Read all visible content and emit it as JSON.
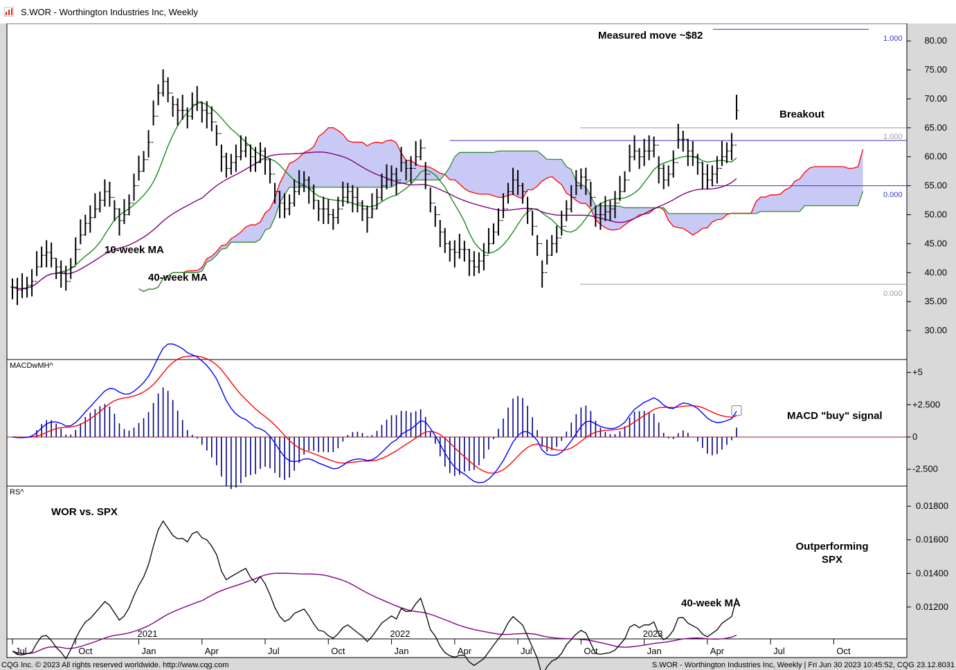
{
  "window": {
    "title": "S.WOR - Worthington Industries Inc, Weekly"
  },
  "footer": {
    "left": "CQG Inc. © 2023 All rights reserved worldwide. http://www.cqg.com",
    "right": "S.WOR - Worthington Industries Inc, Weekly | Fri Jun 30 2023 10:45:52, CQG 23.12.8031"
  },
  "chart_data": [
    {
      "type": "candlestick",
      "panel": "price",
      "ylim": [
        25,
        83
      ],
      "y_ticks": [
        "80.00",
        "75.00",
        "70.00",
        "65.00",
        "60.00",
        "55.00",
        "50.00",
        "45.00",
        "40.00",
        "35.00",
        "30.00"
      ],
      "y_tick_values": [
        80,
        75,
        70,
        65,
        60,
        55,
        50,
        45,
        40,
        35,
        30
      ],
      "annotations": {
        "measured_move": "Measured move ~$82",
        "breakout": "Breakout",
        "ma10": "10-week MA",
        "ma40": "40-week MA"
      },
      "fib_labels": {
        "top": "1.000",
        "upper": "1.000",
        "zero_mid": "0.000",
        "zero_low": "0.000"
      },
      "levels": {
        "measured_move": 82,
        "fib_high": 65,
        "fib_low": 38,
        "box_top": 62.8,
        "box_bottom": 55
      },
      "colors": {
        "cloud": "#c9c9f5",
        "ma10": "#1a8a1a",
        "ma40": "#800080",
        "red_line": "#ff0000",
        "green_line": "#2d8a2d"
      },
      "bars_close": [
        37.5,
        37,
        37.2,
        37.8,
        38.5,
        41,
        43,
        43.5,
        42.5,
        41,
        40,
        38.5,
        41,
        44,
        46.5,
        48.5,
        49.5,
        51,
        52.5,
        54,
        53,
        51,
        49,
        50,
        52,
        55,
        57.5,
        59.5,
        62.5,
        67,
        71,
        73,
        71,
        69,
        68,
        68,
        67,
        69,
        69.5,
        68,
        67.5,
        66,
        64,
        60,
        58,
        59,
        60,
        61,
        62,
        60,
        59,
        61,
        59.5,
        57,
        54,
        52,
        51,
        52,
        54,
        55,
        56,
        54.5,
        52.5,
        51,
        51,
        50,
        49.5,
        51,
        53,
        54,
        53,
        52,
        51,
        49.5,
        51,
        53,
        55,
        56,
        57,
        56,
        59,
        58,
        58,
        60,
        61.5,
        57,
        52,
        50,
        47,
        45,
        44,
        43.5,
        44,
        44,
        42,
        41,
        42,
        43,
        45,
        47,
        49,
        51,
        54,
        56,
        55,
        54,
        51,
        48,
        45,
        40,
        43,
        45,
        46,
        48,
        51,
        53,
        55,
        56.5,
        56,
        53,
        50,
        50,
        50.5,
        51,
        52,
        54,
        56,
        60,
        61,
        60,
        61,
        61,
        62,
        58,
        56,
        57,
        59,
        63,
        63,
        61,
        60,
        59,
        57,
        56,
        57,
        58,
        60,
        61,
        62,
        68
      ]
    },
    {
      "type": "line",
      "panel": "macd",
      "label": "MACDwMH^",
      "ylim": [
        -3.8,
        6
      ],
      "y_ticks": [
        "+5",
        "+2.500",
        "0",
        "-2.500"
      ],
      "y_tick_values": [
        5,
        2.5,
        0,
        -2.5
      ],
      "annotation": "MACD \"buy\" signal"
    },
    {
      "type": "line",
      "panel": "rs",
      "label": "RS^",
      "ylim": [
        0.0101,
        0.0192
      ],
      "y_ticks": [
        "0.01800",
        "0.01600",
        "0.01400",
        "0.01200"
      ],
      "y_tick_values": [
        0.018,
        0.016,
        0.014,
        0.012
      ],
      "annotations": {
        "title": "WOR vs. SPX",
        "outperform_1": "Outperforming",
        "outperform_2": "SPX",
        "ma": "40-week MA"
      }
    }
  ],
  "x_axis": {
    "years": [
      {
        "label": "2021",
        "week": 26
      },
      {
        "label": "2022",
        "week": 78
      },
      {
        "label": "2023",
        "week": 130
      }
    ],
    "months": [
      {
        "label": "Jul",
        "week": 0
      },
      {
        "label": "Oct",
        "week": 13
      },
      {
        "label": "Jan",
        "week": 26
      },
      {
        "label": "Apr",
        "week": 39
      },
      {
        "label": "Jul",
        "week": 52
      },
      {
        "label": "Oct",
        "week": 65
      },
      {
        "label": "Jan",
        "week": 78
      },
      {
        "label": "Apr",
        "week": 91
      },
      {
        "label": "Jul",
        "week": 104
      },
      {
        "label": "Oct",
        "week": 117
      },
      {
        "label": "Jan",
        "week": 130
      },
      {
        "label": "Apr",
        "week": 143
      },
      {
        "label": "Jul",
        "week": 156
      },
      {
        "label": "Oct",
        "week": 169
      }
    ]
  }
}
